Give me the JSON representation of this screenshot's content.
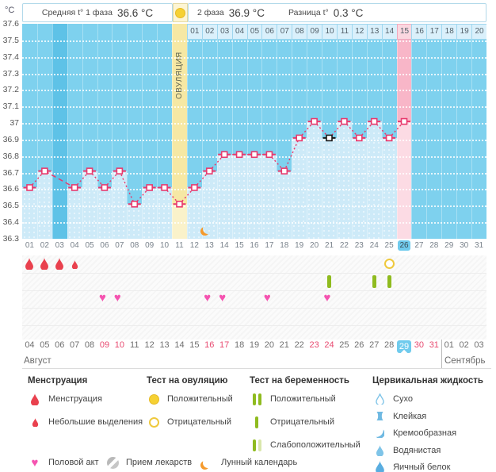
{
  "header": {
    "unit_label": "°C",
    "phase1_label": "Средняя t° 1 фаза",
    "phase1_value": "36.6 °C",
    "phase2_label": "2 фаза",
    "phase2_value": "36.9 °C",
    "diff_label": "Разница t°",
    "diff_value": "0.3 °C"
  },
  "chart_data": {
    "type": "line",
    "ylabel": "°C",
    "ylim": [
      36.3,
      37.6
    ],
    "ytick_step": 0.1,
    "yticks": [
      37.6,
      37.5,
      37.4,
      37.3,
      37.2,
      37.1,
      37.0,
      36.9,
      36.8,
      36.7,
      36.6,
      36.5,
      36.4,
      36.3
    ],
    "x_cycle_days": [
      "01",
      "02",
      "03",
      "04",
      "05",
      "06",
      "07",
      "08",
      "09",
      "10",
      "11",
      "12",
      "13",
      "14",
      "15",
      "16",
      "17",
      "18",
      "19",
      "20",
      "21",
      "22",
      "23",
      "24",
      "25",
      "26",
      "27",
      "28",
      "29",
      "30",
      "31"
    ],
    "temperatures": [
      36.6,
      36.7,
      null,
      36.6,
      36.7,
      36.6,
      36.7,
      36.5,
      36.6,
      36.6,
      36.5,
      36.6,
      36.7,
      36.8,
      36.8,
      36.8,
      36.8,
      36.7,
      36.9,
      37.0,
      36.9,
      37.0,
      36.9,
      37.0,
      36.9,
      37.0,
      null,
      null,
      null,
      null,
      null
    ],
    "missed_day": 3,
    "selected_point_day": 21,
    "highlighted_cycle_day": 26,
    "phase1_avg": 36.6,
    "phase2_avg": 36.9,
    "difference": 0.3,
    "ovulation": {
      "day": 11,
      "label": "ОВУЛЯЦИЯ"
    },
    "dpo": {
      "start_day": 12,
      "highlighted": "15",
      "labels": [
        "01",
        "02",
        "03",
        "04",
        "05",
        "06",
        "07",
        "08",
        "09",
        "10",
        "11",
        "12",
        "13",
        "14",
        "15",
        "16",
        "17",
        "18",
        "19",
        "20"
      ]
    },
    "events": {
      "menstruation_days": [
        1,
        2,
        3
      ],
      "spotting_days": [
        4
      ],
      "intercourse_days": [
        6,
        7,
        13,
        14,
        17,
        21
      ],
      "pregnancy_test_negative_days": [
        21,
        24,
        25
      ],
      "ovulation_test_negative_days": [
        25
      ],
      "moon_day": 13
    },
    "calendar": {
      "month1": "Август",
      "month2": "Сентябрь",
      "month2_start_day": 29,
      "dates": [
        "04",
        "05",
        "06",
        "07",
        "08",
        "09",
        "10",
        "11",
        "12",
        "13",
        "14",
        "15",
        "16",
        "17",
        "18",
        "19",
        "20",
        "21",
        "22",
        "23",
        "24",
        "25",
        "26",
        "27",
        "28",
        "29",
        "30",
        "31",
        "01",
        "02",
        "03"
      ],
      "weekend_days": [
        6,
        7,
        13,
        14,
        20,
        21,
        27,
        28
      ],
      "today_day": 26
    }
  },
  "legend": {
    "groups": [
      {
        "header": "Менструация",
        "items": [
          {
            "icon": "menstruation",
            "label": "Менструация"
          },
          {
            "icon": "spotting",
            "label": "Небольшие выделения"
          }
        ]
      },
      {
        "header": "Тест на овуляцию",
        "items": [
          {
            "icon": "ovulation-positive",
            "label": "Положительный"
          },
          {
            "icon": "ovulation-negative",
            "label": "Отрицательный"
          }
        ]
      },
      {
        "header": "Тест на беременность",
        "items": [
          {
            "icon": "pregnancy-positive",
            "label": "Положительный"
          },
          {
            "icon": "pregnancy-negative",
            "label": "Отрицательный"
          },
          {
            "icon": "pregnancy-weak",
            "label": "Слабоположительный"
          }
        ]
      },
      {
        "header": "Цервикальная жидкость",
        "compact": true,
        "items": [
          {
            "icon": "fluid-dry",
            "label": "Сухо"
          },
          {
            "icon": "fluid-sticky",
            "label": "Клейкая"
          },
          {
            "icon": "fluid-creamy",
            "label": "Кремообразная"
          },
          {
            "icon": "fluid-watery",
            "label": "Водянистая"
          },
          {
            "icon": "fluid-eggwhite",
            "label": "Яичный белок"
          }
        ]
      }
    ],
    "footer_items": [
      {
        "icon": "intercourse",
        "label": "Половой акт"
      },
      {
        "icon": "medication",
        "label": "Прием лекарств"
      },
      {
        "icon": "moon",
        "label": "Лунный календарь"
      }
    ]
  },
  "colors": {
    "plot_blue": "#7ed1ee",
    "fill_blue": "#cdeaf8",
    "missed_blue": "#5ec2e7",
    "ovulation_band": "#f6e8a4",
    "ovulation_band_below": "#faf2ca",
    "today_pink": "#f8b6c8",
    "today_pink_below": "#fcdbe4",
    "line_pink": "#e8396d",
    "selected_black": "#1a1a1a",
    "today_blue": "#70cbed",
    "weekend_red": "#e84a70",
    "menstruation_red": "#e9414e",
    "test_yellow": "#f6d133",
    "test_green": "#8fbb1f",
    "heart_pink": "#f553b0",
    "moon_orange": "#f59a2c",
    "cervical_blue": "#7fc4e8"
  }
}
